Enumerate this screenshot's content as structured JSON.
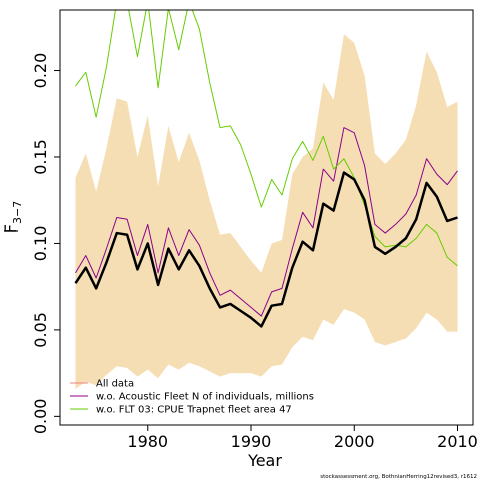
{
  "chart_data": {
    "type": "line",
    "xlabel": "Year",
    "ylabel": "F",
    "ylabel_sub": "3−7",
    "xlim": [
      1971.5,
      2011.5
    ],
    "ylim": [
      -0.005,
      0.235
    ],
    "x_ticks": [
      1980,
      1990,
      2000,
      2010
    ],
    "y_ticks": [
      0.0,
      0.05,
      0.1,
      0.15,
      0.2
    ],
    "y_tick_labels": [
      "0.00",
      "0.05",
      "0.10",
      "0.15",
      "0.20"
    ],
    "grid": false,
    "legend_position": "bottom-left",
    "band_color": "#f5deb3",
    "years": [
      1973,
      1974,
      1975,
      1976,
      1977,
      1978,
      1979,
      1980,
      1981,
      1982,
      1983,
      1984,
      1985,
      1986,
      1987,
      1988,
      1989,
      1990,
      1991,
      1992,
      1993,
      1994,
      1995,
      1996,
      1997,
      1998,
      1999,
      2000,
      2001,
      2002,
      2003,
      2004,
      2005,
      2006,
      2007,
      2008,
      2009,
      2010
    ],
    "band_upper": [
      0.138,
      0.152,
      0.13,
      0.155,
      0.184,
      0.182,
      0.15,
      0.174,
      0.133,
      0.168,
      0.147,
      0.164,
      0.148,
      0.125,
      0.105,
      0.106,
      0.098,
      0.09,
      0.083,
      0.1,
      0.102,
      0.14,
      0.15,
      0.155,
      0.193,
      0.183,
      0.221,
      0.216,
      0.197,
      0.152,
      0.146,
      0.152,
      0.16,
      0.18,
      0.211,
      0.199,
      0.179,
      0.182
    ],
    "band_lower": [
      0.016,
      0.02,
      0.018,
      0.024,
      0.029,
      0.028,
      0.023,
      0.027,
      0.022,
      0.03,
      0.027,
      0.031,
      0.029,
      0.026,
      0.023,
      0.025,
      0.025,
      0.025,
      0.023,
      0.029,
      0.03,
      0.04,
      0.046,
      0.044,
      0.056,
      0.053,
      0.062,
      0.06,
      0.056,
      0.043,
      0.041,
      0.043,
      0.045,
      0.051,
      0.06,
      0.056,
      0.049,
      0.049
    ],
    "series": [
      {
        "name": "All data",
        "color": "#f08080",
        "values": [
          0.077,
          0.086,
          0.074,
          0.089,
          0.106,
          0.105,
          0.085,
          0.1,
          0.076,
          0.097,
          0.085,
          0.096,
          0.087,
          0.074,
          0.063,
          0.065,
          0.061,
          0.057,
          0.052,
          0.064,
          0.065,
          0.086,
          0.101,
          0.096,
          0.123,
          0.119,
          0.141,
          0.137,
          0.125,
          0.098,
          0.094,
          0.098,
          0.103,
          0.114,
          0.135,
          0.127,
          0.113,
          0.115
        ]
      },
      {
        "name": "w.o. Acoustic Fleet  N of individuals, millions",
        "color": "#8b008b",
        "values": [
          0.083,
          0.093,
          0.08,
          0.097,
          0.115,
          0.114,
          0.093,
          0.111,
          0.083,
          0.109,
          0.093,
          0.108,
          0.099,
          0.083,
          0.07,
          0.073,
          0.068,
          0.063,
          0.058,
          0.072,
          0.074,
          0.097,
          0.118,
          0.109,
          0.143,
          0.136,
          0.167,
          0.164,
          0.145,
          0.111,
          0.106,
          0.111,
          0.117,
          0.128,
          0.149,
          0.14,
          0.134,
          0.142
        ]
      },
      {
        "name": "w.o. FLT 03: CPUE Trapnet fleet area 47",
        "color": "#66cd00",
        "values": [
          0.191,
          0.199,
          0.173,
          0.202,
          0.24,
          0.24,
          0.208,
          0.24,
          0.19,
          0.236,
          0.212,
          0.24,
          0.224,
          0.193,
          0.167,
          0.168,
          0.157,
          0.14,
          0.121,
          0.137,
          0.128,
          0.149,
          0.159,
          0.148,
          0.162,
          0.143,
          0.149,
          0.138,
          0.122,
          0.104,
          0.098,
          0.099,
          0.098,
          0.103,
          0.111,
          0.106,
          0.092,
          0.087
        ]
      },
      {
        "name": "",
        "color": "#000000",
        "values": [
          0.077,
          0.086,
          0.074,
          0.089,
          0.106,
          0.105,
          0.085,
          0.1,
          0.076,
          0.097,
          0.085,
          0.096,
          0.087,
          0.074,
          0.063,
          0.065,
          0.061,
          0.057,
          0.052,
          0.064,
          0.065,
          0.086,
          0.101,
          0.096,
          0.123,
          0.119,
          0.141,
          0.137,
          0.125,
          0.098,
          0.094,
          0.098,
          0.103,
          0.114,
          0.135,
          0.127,
          0.113,
          0.115
        ]
      }
    ],
    "legend": [
      {
        "label": "All data",
        "color": "#f08080"
      },
      {
        "label": "w.o. Acoustic Fleet  N of individuals, millions",
        "color": "#8b008b"
      },
      {
        "label": "w.o. FLT 03: CPUE Trapnet fleet area 47",
        "color": "#66cd00"
      }
    ],
    "footer": "stockassessment.org, BothnianHerring12revised3, r1612"
  }
}
